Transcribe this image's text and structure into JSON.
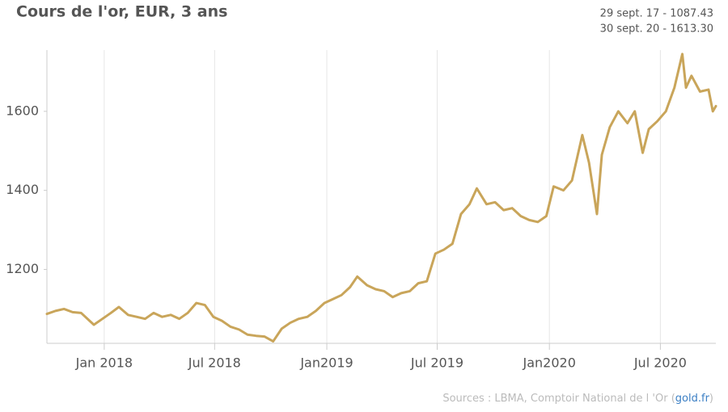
{
  "chart_data": {
    "type": "line",
    "title": "Cours de l'or, EUR, 3 ans",
    "annotations": [
      "29 sept. 17 - 1087.43",
      "30 sept. 20 - 1613.30"
    ],
    "source": {
      "prefix": "Sources : LBMA, Comptoir National de l 'Or (",
      "link": "gold.fr",
      "suffix": ")"
    },
    "color": "#c9a55a",
    "xgrid": true,
    "xlim": [
      "2017-09-29",
      "2020-09-30"
    ],
    "xticks": [
      {
        "value": "2018-01-01",
        "label": "Jan 2018"
      },
      {
        "value": "2018-07-01",
        "label": "Jul 2018"
      },
      {
        "value": "2019-01-01",
        "label": "Jan2019"
      },
      {
        "value": "2019-07-01",
        "label": "Jul 2019"
      },
      {
        "value": "2020-01-01",
        "label": "Jan2020"
      },
      {
        "value": "2020-07-01",
        "label": "Jul 2020"
      }
    ],
    "ylim": [
      1013,
      1755
    ],
    "yticks": [
      1200,
      1400,
      1600
    ],
    "x": [
      "2017-09-29",
      "2017-10-13",
      "2017-10-27",
      "2017-11-10",
      "2017-11-24",
      "2017-12-08",
      "2017-12-15",
      "2017-12-29",
      "2018-01-12",
      "2018-01-25",
      "2018-02-09",
      "2018-02-23",
      "2018-03-09",
      "2018-03-23",
      "2018-04-06",
      "2018-04-20",
      "2018-05-04",
      "2018-05-18",
      "2018-06-01",
      "2018-06-15",
      "2018-06-29",
      "2018-07-13",
      "2018-07-27",
      "2018-08-10",
      "2018-08-24",
      "2018-09-07",
      "2018-09-21",
      "2018-10-05",
      "2018-10-19",
      "2018-11-02",
      "2018-11-16",
      "2018-11-30",
      "2018-12-14",
      "2018-12-28",
      "2019-01-11",
      "2019-01-25",
      "2019-02-08",
      "2019-02-20",
      "2019-03-08",
      "2019-03-22",
      "2019-04-05",
      "2019-04-19",
      "2019-05-03",
      "2019-05-17",
      "2019-05-31",
      "2019-06-14",
      "2019-06-28",
      "2019-07-12",
      "2019-07-26",
      "2019-08-09",
      "2019-08-23",
      "2019-09-04",
      "2019-09-20",
      "2019-10-04",
      "2019-10-18",
      "2019-11-01",
      "2019-11-15",
      "2019-11-29",
      "2019-12-13",
      "2019-12-27",
      "2020-01-08",
      "2020-01-24",
      "2020-02-07",
      "2020-02-24",
      "2020-03-06",
      "2020-03-19",
      "2020-03-27",
      "2020-04-09",
      "2020-04-23",
      "2020-05-08",
      "2020-05-20",
      "2020-06-02",
      "2020-06-12",
      "2020-06-26",
      "2020-07-10",
      "2020-07-24",
      "2020-08-06",
      "2020-08-12",
      "2020-08-21",
      "2020-09-04",
      "2020-09-18",
      "2020-09-25",
      "2020-09-30"
    ],
    "values": [
      1087.43,
      1095,
      1100,
      1092,
      1090,
      1070,
      1060,
      1075,
      1090,
      1105,
      1085,
      1080,
      1075,
      1090,
      1080,
      1085,
      1075,
      1090,
      1115,
      1110,
      1080,
      1070,
      1055,
      1048,
      1035,
      1032,
      1030,
      1018,
      1050,
      1065,
      1075,
      1080,
      1095,
      1115,
      1125,
      1135,
      1155,
      1182,
      1160,
      1150,
      1145,
      1130,
      1140,
      1145,
      1165,
      1170,
      1240,
      1250,
      1265,
      1340,
      1365,
      1405,
      1365,
      1370,
      1350,
      1355,
      1335,
      1325,
      1320,
      1335,
      1410,
      1400,
      1425,
      1540,
      1470,
      1340,
      1490,
      1560,
      1600,
      1570,
      1600,
      1495,
      1555,
      1575,
      1600,
      1660,
      1745,
      1660,
      1690,
      1650,
      1655,
      1600,
      1613.3
    ]
  }
}
